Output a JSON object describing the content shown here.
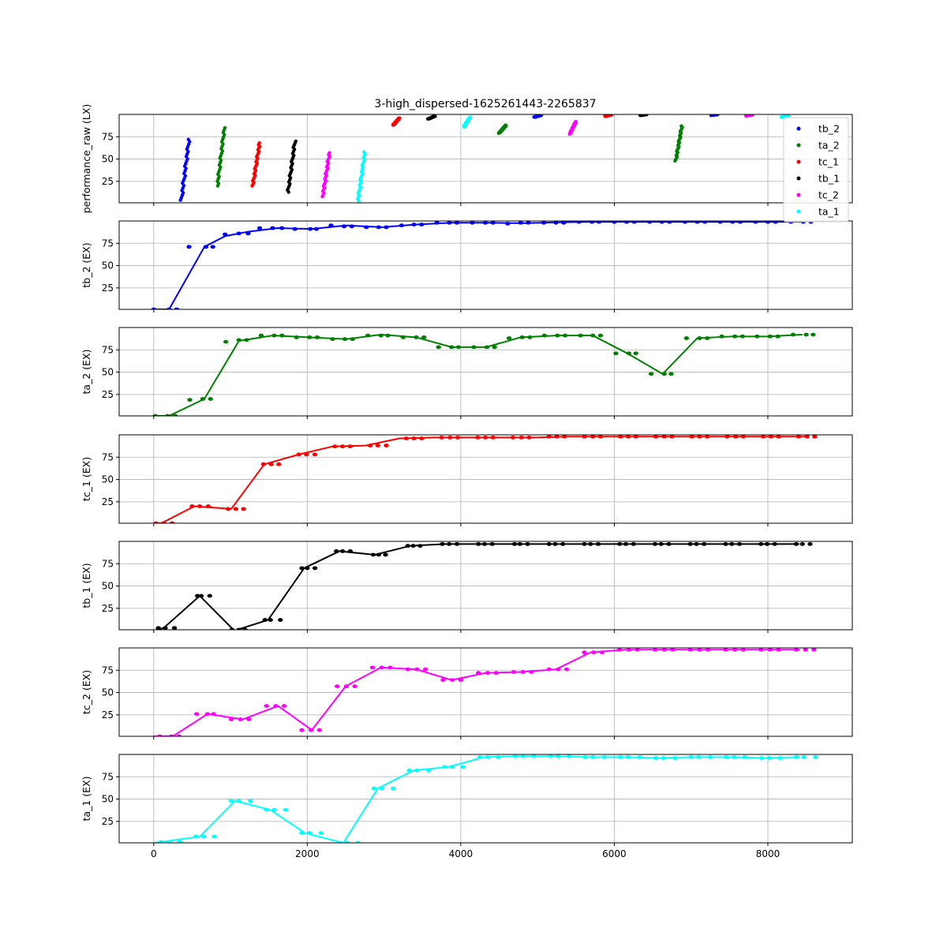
{
  "chart_data": {
    "type": "scatter",
    "title": "3-high_dispersed-1625261443-2265837",
    "grid": true,
    "legend_position": "top-right",
    "x_ticks": [
      0,
      2000,
      4000,
      6000,
      8000
    ],
    "y_ticks": [
      25,
      50,
      75
    ],
    "xlim": [
      -450,
      9100
    ],
    "ylim": [
      1,
      100
    ],
    "panels": [
      {
        "ylabel": "performance_raw (LX)",
        "kind": "raw",
        "segments": [
          {
            "series": "tb_2",
            "x0": 360,
            "x1": 460,
            "y0": 4,
            "y1": 72
          },
          {
            "series": "ta_2",
            "x0": 830,
            "x1": 920,
            "y0": 20,
            "y1": 85
          },
          {
            "series": "tc_1",
            "x0": 1290,
            "x1": 1380,
            "y0": 20,
            "y1": 68
          },
          {
            "series": "tb_1",
            "x0": 1750,
            "x1": 1840,
            "y0": 13,
            "y1": 70
          },
          {
            "series": "tc_2",
            "x0": 2200,
            "x1": 2290,
            "y0": 8,
            "y1": 57
          },
          {
            "series": "ta_1",
            "x0": 2660,
            "x1": 2750,
            "y0": 3,
            "y1": 58
          },
          {
            "series": "tc_1",
            "x0": 3120,
            "x1": 3200,
            "y0": 88,
            "y1": 96
          },
          {
            "series": "tb_1",
            "x0": 3580,
            "x1": 3660,
            "y0": 95,
            "y1": 98
          },
          {
            "series": "ta_1",
            "x0": 4040,
            "x1": 4120,
            "y0": 86,
            "y1": 97
          },
          {
            "series": "ta_2",
            "x0": 4500,
            "x1": 4590,
            "y0": 79,
            "y1": 88
          },
          {
            "series": "tb_2",
            "x0": 4960,
            "x1": 5040,
            "y0": 97,
            "y1": 99
          },
          {
            "series": "tc_2",
            "x0": 5420,
            "x1": 5500,
            "y0": 78,
            "y1": 92
          },
          {
            "series": "tc_1",
            "x0": 5880,
            "x1": 5960,
            "y0": 98,
            "y1": 99.5
          },
          {
            "series": "tb_1",
            "x0": 6340,
            "x1": 6420,
            "y0": 99,
            "y1": 100
          },
          {
            "series": "ta_2",
            "x0": 6800,
            "x1": 6880,
            "y0": 48,
            "y1": 87
          },
          {
            "series": "tb_2",
            "x0": 7260,
            "x1": 7340,
            "y0": 99,
            "y1": 100
          },
          {
            "series": "tc_2",
            "x0": 7720,
            "x1": 7800,
            "y0": 98.5,
            "y1": 99.5
          },
          {
            "series": "ta_1",
            "x0": 8180,
            "x1": 8260,
            "y0": 97,
            "y1": 98.5
          }
        ]
      },
      {
        "ylabel": "tb_2 (EX)",
        "series": "tb_2",
        "line_x": [
          0,
          200,
          660,
          930,
          1230,
          1620,
          2060,
          2510,
          2970,
          3420,
          3880,
          4340,
          4790,
          5250,
          5710,
          6170,
          6620,
          7080,
          7540,
          7990,
          8450
        ],
        "line_y": [
          1,
          1,
          71,
          83,
          88,
          92,
          91,
          95,
          93,
          96,
          98,
          98,
          97.5,
          98.5,
          99,
          99,
          99,
          99,
          99,
          99,
          99
        ],
        "points_x": [
          0,
          200,
          300,
          460,
          680,
          770,
          930,
          1110,
          1230,
          1380,
          1550,
          1670,
          1840,
          2040,
          2120,
          2310,
          2480,
          2580,
          2770,
          2930,
          3030,
          3230,
          3390,
          3490,
          3690,
          3850,
          3950,
          4150,
          4320,
          4420,
          4610,
          4780,
          4880,
          5080,
          5240,
          5340,
          5540,
          5710,
          5800,
          6000,
          6160,
          6260,
          6460,
          6620,
          6720,
          6920,
          7080,
          7180,
          7380,
          7540,
          7640,
          7840,
          8000,
          8100,
          8300,
          8460,
          8560
        ],
        "points_y": [
          1,
          1,
          1,
          71,
          71,
          71,
          85,
          86,
          86,
          92,
          92,
          92,
          91,
          91,
          91,
          95,
          94,
          94,
          93,
          93,
          93,
          95,
          96,
          96,
          98,
          98,
          98,
          98,
          98,
          98,
          97,
          98,
          98,
          98,
          98,
          98,
          99,
          99,
          99,
          99,
          99,
          99,
          99,
          99,
          99,
          99,
          99,
          99,
          99,
          99,
          99,
          99,
          99,
          99,
          99,
          99,
          99
        ]
      },
      {
        "ylabel": "ta_2 (EX)",
        "series": "ta_2",
        "line_x": [
          0,
          200,
          660,
          1110,
          1550,
          2040,
          2510,
          2960,
          3420,
          3880,
          4330,
          4780,
          5250,
          5720,
          6170,
          6630,
          7080,
          7540,
          7990,
          8450
        ],
        "line_y": [
          1,
          1,
          20,
          85,
          91,
          89,
          87,
          92,
          89,
          78,
          78,
          89,
          91,
          91,
          71,
          48,
          88,
          90,
          90,
          92
        ],
        "points_x": [
          20,
          180,
          280,
          470,
          640,
          740,
          940,
          1110,
          1210,
          1400,
          1570,
          1670,
          1860,
          2030,
          2130,
          2330,
          2490,
          2590,
          2790,
          2960,
          3050,
          3250,
          3420,
          3520,
          3710,
          3880,
          3970,
          4170,
          4340,
          4440,
          4630,
          4800,
          4900,
          5090,
          5260,
          5360,
          5560,
          5720,
          5820,
          6020,
          6190,
          6280,
          6480,
          6650,
          6740,
          6940,
          7110,
          7210,
          7400,
          7570,
          7670,
          7860,
          8030,
          8130,
          8330,
          8500,
          8590
        ],
        "points_y": [
          1,
          1,
          1,
          19,
          20,
          20,
          84,
          86,
          86,
          91,
          91,
          91,
          89,
          89,
          89,
          87,
          87,
          87,
          91,
          91,
          91,
          89,
          89,
          89,
          78,
          78,
          78,
          78,
          78,
          78,
          88,
          89,
          89,
          91,
          91,
          91,
          91,
          91,
          91,
          71,
          71,
          71,
          48,
          48,
          48,
          88,
          88,
          88,
          90,
          90,
          90,
          90,
          90,
          90,
          92,
          92,
          92
        ]
      },
      {
        "ylabel": "tc_1 (EX)",
        "series": "tc_1",
        "line_x": [
          0,
          100,
          530,
          1010,
          1440,
          1890,
          2330,
          2760,
          3200,
          3650,
          4090,
          4520,
          4970,
          5410,
          5860,
          6290,
          6740,
          7180,
          7620,
          8060,
          8500
        ],
        "line_y": [
          1,
          1,
          20,
          17,
          67,
          78,
          87,
          88,
          96,
          97,
          97,
          97,
          97,
          98,
          98,
          98,
          98,
          98,
          98,
          98,
          98
        ],
        "points_x": [
          30,
          130,
          240,
          500,
          600,
          710,
          970,
          1070,
          1170,
          1430,
          1530,
          1630,
          1890,
          1990,
          2100,
          2360,
          2460,
          2560,
          2820,
          2920,
          3030,
          3290,
          3390,
          3490,
          3750,
          3860,
          3960,
          4220,
          4320,
          4420,
          4680,
          4790,
          4890,
          5150,
          5250,
          5350,
          5610,
          5720,
          5820,
          6080,
          6180,
          6280,
          6540,
          6650,
          6750,
          7010,
          7110,
          7210,
          7470,
          7580,
          7680,
          7940,
          8040,
          8140,
          8400,
          8510,
          8610
        ],
        "points_y": [
          1,
          1,
          1,
          20,
          20,
          20,
          17,
          17,
          17,
          67,
          67,
          67,
          78,
          78,
          78,
          87,
          87,
          87,
          88,
          88,
          88,
          96,
          96,
          96,
          97,
          97,
          97,
          97,
          97,
          97,
          97,
          97,
          97,
          98,
          98,
          98,
          98,
          98,
          98,
          98,
          98,
          98,
          98,
          98,
          98,
          98,
          98,
          98,
          98,
          98,
          98,
          98,
          98,
          98,
          98,
          98,
          98
        ]
      },
      {
        "ylabel": "tb_1 (EX)",
        "series": "tb_1",
        "line_x": [
          0,
          130,
          600,
          1050,
          1490,
          1960,
          2420,
          2880,
          3340,
          3800,
          4270,
          4730,
          5190,
          5650,
          6110,
          6570,
          7030,
          7490,
          7950,
          8410
        ],
        "line_y": [
          0,
          3,
          39,
          0,
          12,
          70,
          89,
          85,
          95,
          97,
          97,
          97,
          97,
          97,
          97,
          97,
          97,
          97,
          97,
          97
        ],
        "points_x": [
          60,
          150,
          270,
          570,
          620,
          730,
          1020,
          1110,
          1190,
          1450,
          1520,
          1650,
          1930,
          2000,
          2100,
          2380,
          2460,
          2560,
          2860,
          2930,
          3020,
          3310,
          3380,
          3470,
          3760,
          3850,
          3950,
          4230,
          4310,
          4410,
          4700,
          4770,
          4870,
          5150,
          5230,
          5330,
          5610,
          5690,
          5790,
          6070,
          6150,
          6250,
          6530,
          6610,
          6710,
          6990,
          7070,
          7170,
          7450,
          7530,
          7630,
          7910,
          7990,
          8090,
          8370,
          8450,
          8550
        ],
        "points_y": [
          3,
          3,
          3,
          39,
          39,
          39,
          1,
          1,
          1,
          12,
          12,
          12,
          70,
          70,
          70,
          89,
          89,
          89,
          85,
          85,
          85,
          95,
          95,
          95,
          97,
          97,
          97,
          97,
          97,
          97,
          97,
          97,
          97,
          97,
          97,
          97,
          97,
          97,
          97,
          97,
          97,
          97,
          97,
          97,
          97,
          97,
          97,
          97,
          97,
          97,
          97,
          97,
          97,
          97,
          97,
          97,
          97
        ]
      },
      {
        "ylabel": "tc_2 (EX)",
        "series": "tc_2",
        "line_x": [
          0,
          250,
          700,
          1160,
          1620,
          2060,
          2500,
          2960,
          3420,
          3880,
          4330,
          4780,
          5240,
          5690,
          6150,
          6600,
          7050,
          7510,
          7960,
          8420
        ],
        "line_y": [
          1,
          1,
          26,
          20,
          35,
          8,
          57,
          78,
          76,
          64,
          72,
          73,
          76,
          95,
          98,
          98,
          98,
          98,
          98,
          98
        ],
        "points_x": [
          80,
          230,
          330,
          560,
          700,
          780,
          1010,
          1130,
          1240,
          1470,
          1590,
          1700,
          1930,
          2050,
          2160,
          2390,
          2510,
          2620,
          2850,
          2970,
          3080,
          3310,
          3430,
          3540,
          3770,
          3890,
          4000,
          4230,
          4350,
          4460,
          4690,
          4810,
          4920,
          5150,
          5270,
          5380,
          5610,
          5730,
          5840,
          6070,
          6190,
          6300,
          6530,
          6650,
          6760,
          6990,
          7110,
          7220,
          7450,
          7570,
          7680,
          7910,
          8030,
          8140,
          8370,
          8490,
          8600
        ],
        "points_y": [
          1,
          1,
          1,
          26,
          26,
          26,
          20,
          20,
          20,
          35,
          35,
          35,
          8,
          8,
          8,
          57,
          57,
          57,
          78,
          78,
          78,
          76,
          76,
          76,
          64,
          64,
          64,
          72,
          72,
          72,
          73,
          73,
          73,
          76,
          76,
          76,
          95,
          95,
          95,
          98,
          98,
          98,
          98,
          98,
          98,
          98,
          98,
          98,
          98,
          98,
          98,
          98,
          98,
          98,
          98,
          98,
          98
        ]
      },
      {
        "ylabel": "ta_1 (EX)",
        "series": "ta_1",
        "line_x": [
          0,
          100,
          600,
          1060,
          1520,
          1970,
          2470,
          2920,
          3380,
          3840,
          4300,
          4760,
          5220,
          5670,
          6130,
          6590,
          7050,
          7510,
          7960,
          8420
        ],
        "line_y": [
          1,
          2,
          8,
          48,
          38,
          12,
          1,
          62,
          82,
          86,
          97,
          98,
          98,
          97,
          97,
          96,
          97,
          97,
          96,
          97
        ],
        "points_x": [
          100,
          200,
          340,
          550,
          650,
          790,
          1010,
          1110,
          1260,
          1470,
          1570,
          1720,
          1930,
          2030,
          2180,
          2420,
          2520,
          2660,
          2870,
          2970,
          3120,
          3330,
          3430,
          3580,
          3790,
          3890,
          4030,
          4250,
          4350,
          4490,
          4710,
          4810,
          4950,
          5170,
          5270,
          5410,
          5620,
          5720,
          5870,
          6080,
          6180,
          6330,
          6540,
          6640,
          6790,
          7000,
          7100,
          7250,
          7460,
          7560,
          7700,
          7920,
          8020,
          8160,
          8370,
          8470,
          8620
        ],
        "points_y": [
          2,
          2,
          2,
          8,
          8,
          8,
          48,
          48,
          48,
          38,
          38,
          38,
          12,
          12,
          12,
          1,
          1,
          1,
          62,
          62,
          62,
          82,
          82,
          82,
          86,
          86,
          86,
          97,
          97,
          97,
          98,
          98,
          98,
          98,
          98,
          98,
          97,
          97,
          97,
          97,
          97,
          97,
          96,
          96,
          96,
          97,
          97,
          97,
          97,
          97,
          97,
          96,
          96,
          96,
          97,
          97,
          97
        ]
      }
    ],
    "legend": [
      {
        "name": "tb_2",
        "color": "#0000ff"
      },
      {
        "name": "ta_2",
        "color": "#008000"
      },
      {
        "name": "tc_1",
        "color": "#ff0000"
      },
      {
        "name": "tb_1",
        "color": "#000000"
      },
      {
        "name": "tc_2",
        "color": "#ff00ff"
      },
      {
        "name": "ta_1",
        "color": "#00ffff"
      }
    ]
  }
}
